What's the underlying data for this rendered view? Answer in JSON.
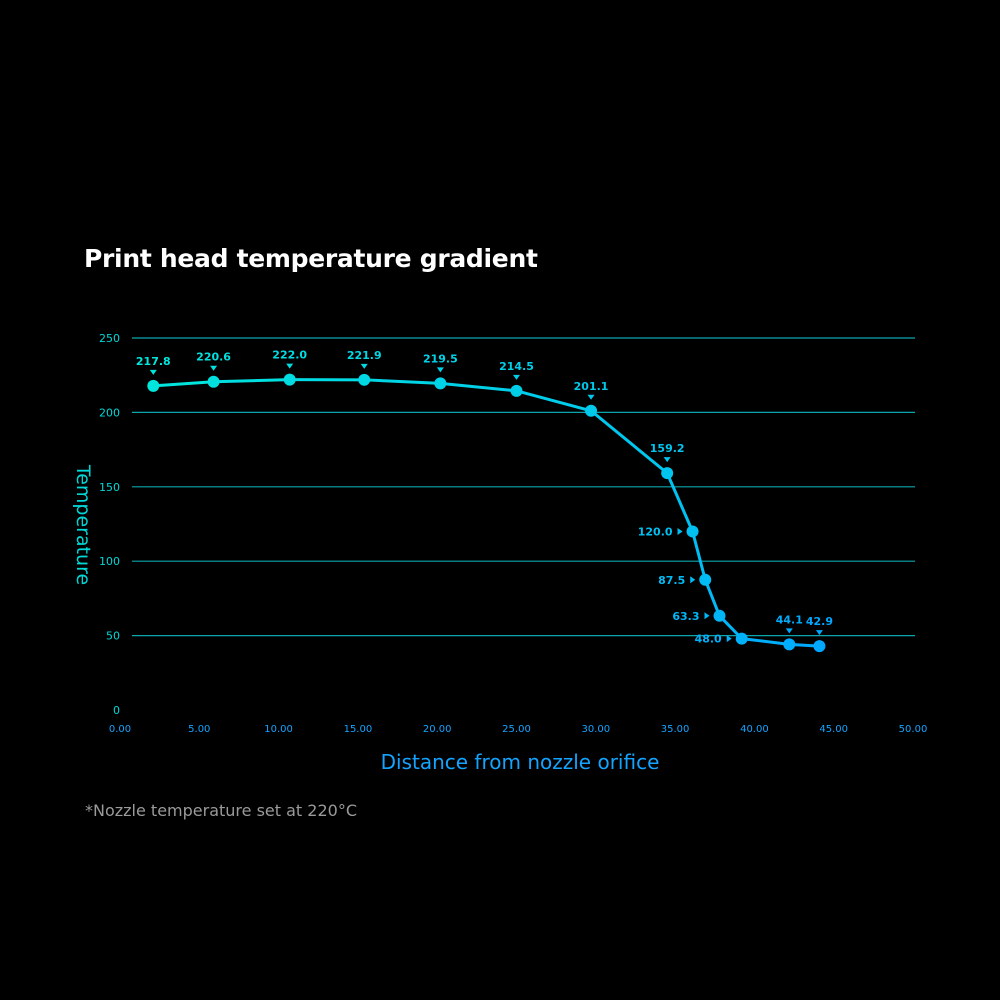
{
  "chart_data": {
    "type": "line",
    "title": "Print head temperature gradient",
    "xlabel": "Distance from nozzle orifice",
    "ylabel": "Temperature",
    "footnote": "*Nozzle temperature set at 220°C",
    "xlim": [
      0,
      50
    ],
    "ylim": [
      0,
      250
    ],
    "xticks": [
      "0.00",
      "5.00",
      "10.00",
      "15.00",
      "20.00",
      "25.00",
      "30.00",
      "35.00",
      "40.00",
      "45.00",
      "50.00"
    ],
    "yticks": [
      "0",
      "50",
      "100",
      "150",
      "200",
      "250"
    ],
    "grid": "horizontal",
    "series": [
      {
        "name": "Temperature",
        "points": [
          {
            "x": 2.1,
            "y": 217.8,
            "label": "217.8",
            "label_side": "top"
          },
          {
            "x": 5.9,
            "y": 220.6,
            "label": "220.6",
            "label_side": "top"
          },
          {
            "x": 10.7,
            "y": 222.0,
            "label": "222.0",
            "label_side": "top"
          },
          {
            "x": 15.4,
            "y": 221.9,
            "label": "221.9",
            "label_side": "top"
          },
          {
            "x": 20.2,
            "y": 219.5,
            "label": "219.5",
            "label_side": "top"
          },
          {
            "x": 25.0,
            "y": 214.5,
            "label": "214.5",
            "label_side": "top"
          },
          {
            "x": 29.7,
            "y": 201.1,
            "label": "201.1",
            "label_side": "top"
          },
          {
            "x": 34.5,
            "y": 159.2,
            "label": "159.2",
            "label_side": "top"
          },
          {
            "x": 36.1,
            "y": 120.0,
            "label": "120.0",
            "label_side": "left"
          },
          {
            "x": 36.9,
            "y": 87.5,
            "label": "87.5",
            "label_side": "left"
          },
          {
            "x": 37.8,
            "y": 63.3,
            "label": "63.3",
            "label_side": "left"
          },
          {
            "x": 39.2,
            "y": 48.0,
            "label": "48.0",
            "label_side": "left"
          },
          {
            "x": 42.2,
            "y": 44.1,
            "label": "44.1",
            "label_side": "top"
          },
          {
            "x": 44.1,
            "y": 42.9,
            "label": "42.9",
            "label_side": "top"
          }
        ]
      }
    ],
    "colors": {
      "start": "#00e6dc",
      "end": "#00a8ff",
      "grid": "#0aa6ac",
      "yaxis_text": "#00d8d8",
      "xaxis_text": "#14a4ff"
    }
  }
}
